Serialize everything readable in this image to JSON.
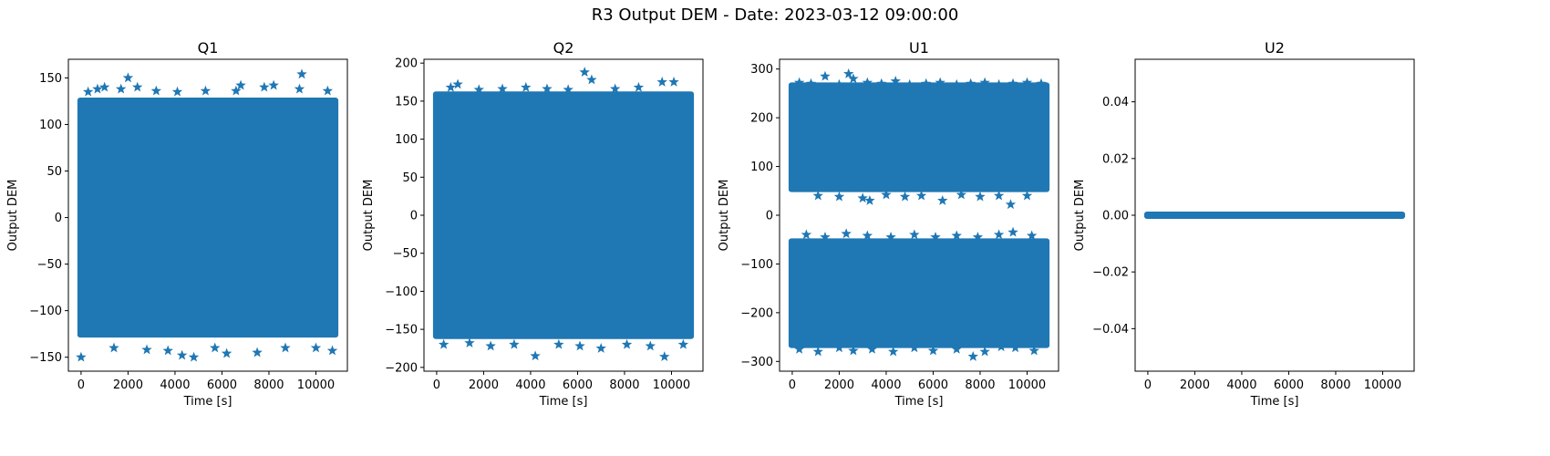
{
  "figure": {
    "title": "R3 Output DEM - Date: 2023-03-12 09:00:00"
  },
  "colors": {
    "series": "#1f77b4"
  },
  "chart_data": [
    {
      "type": "scatter",
      "title": "Q1",
      "xlabel": "Time [s]",
      "ylabel": "Output DEM",
      "marker": "star",
      "xlim": [
        -540,
        11340
      ],
      "ylim": [
        -165,
        170
      ],
      "xticks": [
        0,
        2000,
        4000,
        6000,
        8000,
        10000
      ],
      "yticks": [
        -150,
        -100,
        -50,
        0,
        50,
        100,
        150
      ],
      "yticklabels": [
        "−150",
        "−100",
        "−50",
        "0",
        "50",
        "100",
        "150"
      ],
      "dense_bands": [
        {
          "x": [
            0,
            10800
          ],
          "y": [
            -125,
            125
          ]
        }
      ],
      "outlier_points": [
        [
          0,
          -150
        ],
        [
          300,
          135
        ],
        [
          700,
          138
        ],
        [
          1000,
          140
        ],
        [
          1400,
          -140
        ],
        [
          1700,
          138
        ],
        [
          2000,
          150
        ],
        [
          2400,
          140
        ],
        [
          2800,
          -142
        ],
        [
          3200,
          136
        ],
        [
          3700,
          -143
        ],
        [
          4100,
          135
        ],
        [
          4300,
          -148
        ],
        [
          4800,
          -150
        ],
        [
          5300,
          136
        ],
        [
          5700,
          -140
        ],
        [
          6200,
          -146
        ],
        [
          6600,
          136
        ],
        [
          6800,
          142
        ],
        [
          7500,
          -145
        ],
        [
          7800,
          140
        ],
        [
          8200,
          142
        ],
        [
          8700,
          -140
        ],
        [
          9300,
          138
        ],
        [
          9400,
          154
        ],
        [
          10000,
          -140
        ],
        [
          10500,
          136
        ],
        [
          10700,
          -143
        ]
      ]
    },
    {
      "type": "scatter",
      "title": "Q2",
      "xlabel": "Time [s]",
      "ylabel": "Output DEM",
      "marker": "star",
      "xlim": [
        -540,
        11340
      ],
      "ylim": [
        -205,
        205
      ],
      "xticks": [
        0,
        2000,
        4000,
        6000,
        8000,
        10000
      ],
      "yticks": [
        -200,
        -150,
        -100,
        -50,
        0,
        50,
        100,
        150,
        200
      ],
      "yticklabels": [
        "−200",
        "−150",
        "−100",
        "−50",
        "0",
        "50",
        "100",
        "150",
        "200"
      ],
      "dense_bands": [
        {
          "x": [
            0,
            10800
          ],
          "y": [
            -158,
            158
          ]
        }
      ],
      "outlier_points": [
        [
          300,
          -170
        ],
        [
          600,
          168
        ],
        [
          900,
          172
        ],
        [
          1400,
          -168
        ],
        [
          1800,
          165
        ],
        [
          2300,
          -172
        ],
        [
          2800,
          166
        ],
        [
          3300,
          -170
        ],
        [
          3800,
          168
        ],
        [
          4200,
          -185
        ],
        [
          4700,
          166
        ],
        [
          5200,
          -170
        ],
        [
          5600,
          165
        ],
        [
          6100,
          -172
        ],
        [
          6300,
          188
        ],
        [
          6600,
          178
        ],
        [
          7000,
          -175
        ],
        [
          7600,
          166
        ],
        [
          8100,
          -170
        ],
        [
          8600,
          168
        ],
        [
          9100,
          -172
        ],
        [
          9600,
          175
        ],
        [
          9700,
          -186
        ],
        [
          10100,
          175
        ],
        [
          10500,
          -170
        ]
      ]
    },
    {
      "type": "scatter",
      "title": "U1",
      "xlabel": "Time [s]",
      "ylabel": "Output DEM",
      "marker": "star",
      "xlim": [
        -540,
        11340
      ],
      "ylim": [
        -320,
        320
      ],
      "xticks": [
        0,
        2000,
        4000,
        6000,
        8000,
        10000
      ],
      "yticks": [
        -300,
        -200,
        -100,
        0,
        100,
        200,
        300
      ],
      "yticklabels": [
        "−300",
        "−200",
        "−100",
        "0",
        "100",
        "200",
        "300"
      ],
      "dense_bands": [
        {
          "x": [
            0,
            10800
          ],
          "y": [
            55,
            265
          ]
        },
        {
          "x": [
            0,
            10800
          ],
          "y": [
            -265,
            -55
          ]
        }
      ],
      "outlier_points": [
        [
          300,
          272
        ],
        [
          800,
          270
        ],
        [
          1400,
          285
        ],
        [
          2000,
          268
        ],
        [
          2400,
          290
        ],
        [
          2600,
          280
        ],
        [
          3200,
          272
        ],
        [
          3800,
          270
        ],
        [
          4400,
          275
        ],
        [
          5000,
          268
        ],
        [
          5700,
          270
        ],
        [
          6300,
          272
        ],
        [
          7000,
          268
        ],
        [
          7600,
          270
        ],
        [
          8200,
          272
        ],
        [
          8800,
          268
        ],
        [
          9400,
          270
        ],
        [
          10000,
          272
        ],
        [
          10600,
          270
        ],
        [
          1100,
          40
        ],
        [
          2000,
          38
        ],
        [
          3000,
          35
        ],
        [
          3300,
          30
        ],
        [
          4000,
          42
        ],
        [
          4800,
          38
        ],
        [
          5500,
          40
        ],
        [
          6400,
          30
        ],
        [
          7200,
          42
        ],
        [
          8000,
          38
        ],
        [
          8800,
          40
        ],
        [
          9300,
          22
        ],
        [
          10000,
          40
        ],
        [
          600,
          -40
        ],
        [
          1400,
          -45
        ],
        [
          2300,
          -38
        ],
        [
          3200,
          -42
        ],
        [
          4200,
          -45
        ],
        [
          5200,
          -40
        ],
        [
          6100,
          -45
        ],
        [
          7000,
          -42
        ],
        [
          7900,
          -45
        ],
        [
          8800,
          -40
        ],
        [
          9400,
          -35
        ],
        [
          10200,
          -42
        ],
        [
          300,
          -275
        ],
        [
          1100,
          -280
        ],
        [
          2000,
          -272
        ],
        [
          2600,
          -278
        ],
        [
          3400,
          -275
        ],
        [
          4300,
          -280
        ],
        [
          5200,
          -272
        ],
        [
          6000,
          -278
        ],
        [
          7000,
          -275
        ],
        [
          7700,
          -290
        ],
        [
          8200,
          -280
        ],
        [
          8900,
          -270
        ],
        [
          9500,
          -272
        ],
        [
          10300,
          -278
        ]
      ]
    },
    {
      "type": "scatter",
      "title": "U2",
      "xlabel": "Time [s]",
      "ylabel": "Output DEM",
      "marker": "star",
      "xlim": [
        -540,
        11340
      ],
      "ylim": [
        -0.055,
        0.055
      ],
      "xticks": [
        0,
        2000,
        4000,
        6000,
        8000,
        10000
      ],
      "yticks": [
        -0.04,
        -0.02,
        0.0,
        0.02,
        0.04
      ],
      "yticklabels": [
        "−0.04",
        "−0.02",
        "0.00",
        "0.02",
        "0.04"
      ],
      "dense_bands": [
        {
          "x": [
            0,
            10800
          ],
          "y": [
            0,
            0
          ]
        }
      ],
      "outlier_points": []
    }
  ]
}
